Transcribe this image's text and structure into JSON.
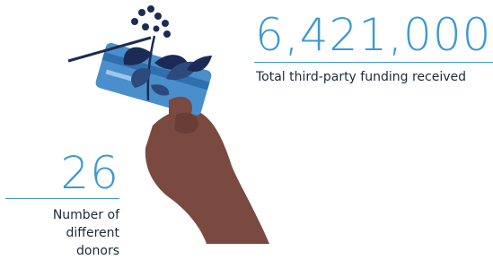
{
  "stats": [
    {
      "value": "6,421,000",
      "label": "Total third-party funding received"
    },
    {
      "value": "26",
      "label": "Number of different donors"
    }
  ]
}
